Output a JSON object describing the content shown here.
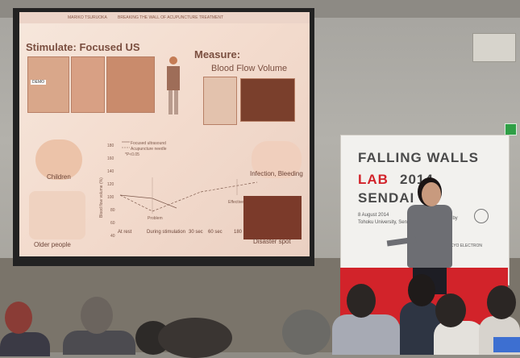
{
  "slide": {
    "header_left": "MARIKO TSURUOKA",
    "header_right": "BREAKING THE WALL OF ACUPUNCTURE TREATMENT",
    "stimulate_title": "Stimulate: Focused US",
    "measure_title": "Measure:",
    "bfv_title": "Blood Flow Volume",
    "legend": [
      "Focused ultrasound",
      "Acupuncture needle",
      "*P<0.05"
    ],
    "ylabel": "Blood flow volume (%)",
    "yticks": [
      "180",
      "160",
      "140",
      "120",
      "100",
      "80",
      "60",
      "40"
    ],
    "xticks": [
      "At rest",
      "During stimulation",
      "30 sec",
      "60 sec",
      "180"
    ],
    "labels": {
      "children": "Children",
      "older_people": "Older people",
      "problem": "Problem",
      "effective": "Effective",
      "infection": "Infection, Bleeding",
      "disaster": "Disaster spot",
      "tag": "DEMO"
    }
  },
  "banner": {
    "line1": "FALLING WALLS",
    "line2_red": "LAB",
    "line2_year": "2014",
    "line3": "SENDAI",
    "date": "8 August 2014",
    "venue": "Tohoku University, Sen",
    "sponsor": "ed by",
    "tokyo": "TOKYO ELECTRON"
  },
  "colors": {
    "banner_red": "#d2232a",
    "slide_text": "#7a4e3f"
  }
}
